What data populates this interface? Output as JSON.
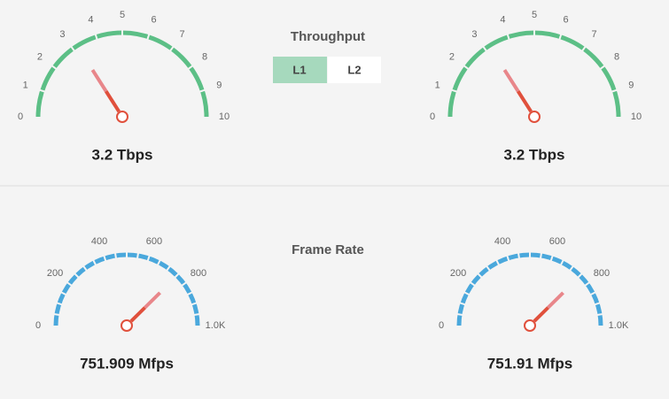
{
  "sections": [
    {
      "title": "Throughput",
      "tabs": [
        "L1",
        "L2"
      ],
      "active_tab": 0,
      "gauges": [
        {
          "value": 3.2,
          "label": "3.2 Tbps",
          "lim": [
            0,
            10
          ],
          "ticks": [
            0,
            1,
            2,
            3,
            4,
            5,
            6,
            7,
            8,
            9,
            10
          ],
          "color": "#5cbf86"
        },
        {
          "value": 3.2,
          "label": "3.2 Tbps",
          "lim": [
            0,
            10
          ],
          "ticks": [
            0,
            1,
            2,
            3,
            4,
            5,
            6,
            7,
            8,
            9,
            10
          ],
          "color": "#5cbf86"
        }
      ]
    },
    {
      "title": "Frame Rate",
      "gauges": [
        {
          "value": 751.909,
          "label": "751.909 Mfps",
          "lim": [
            0,
            1000
          ],
          "ticks": [
            0,
            200,
            400,
            600,
            800,
            {
              "value": 1000,
              "label": "1.0K"
            }
          ],
          "color": "#4aa8dc"
        },
        {
          "value": 751.91,
          "label": "751.91 Mfps",
          "lim": [
            0,
            1000
          ],
          "ticks": [
            0,
            200,
            400,
            600,
            800,
            {
              "value": 1000,
              "label": "1.0K"
            }
          ],
          "color": "#4aa8dc"
        }
      ]
    }
  ]
}
